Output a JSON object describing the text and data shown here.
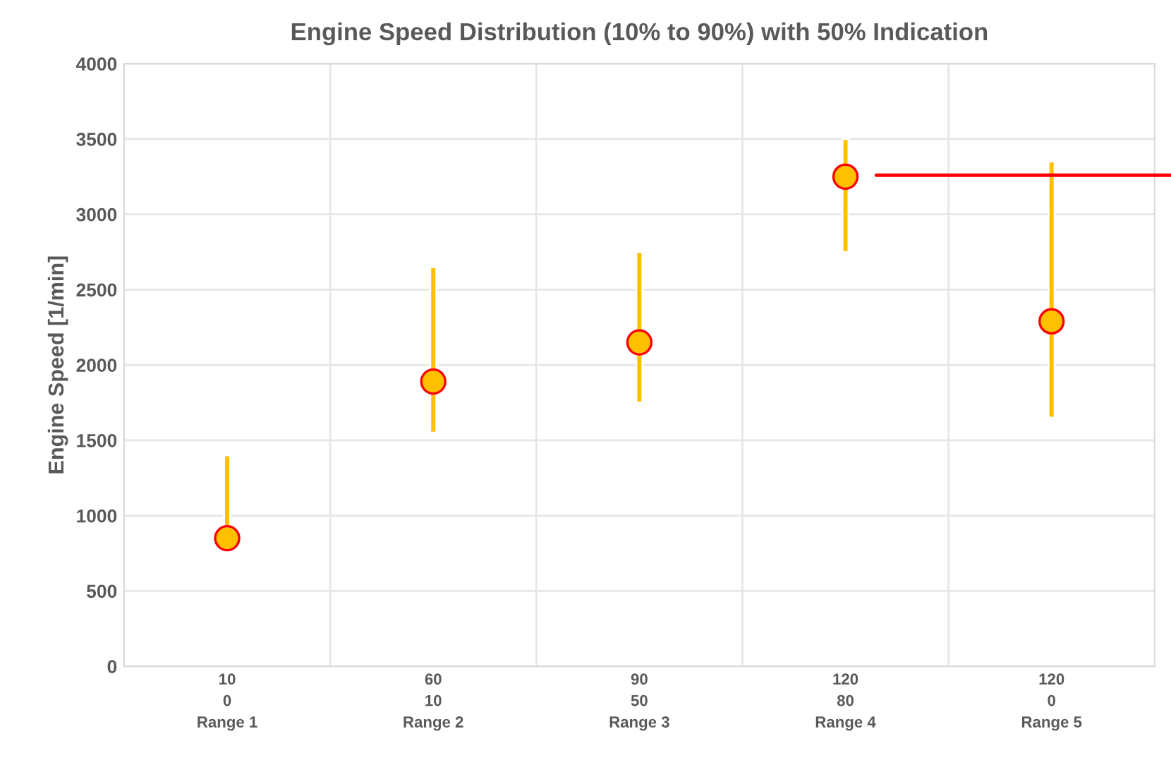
{
  "chart_data": {
    "type": "bar",
    "title": "Engine Speed Distribution (10% to 90%) with 50% Indication",
    "ylabel": "Engine Speed [1/min]",
    "categories": [
      "10\n0\nRange 1",
      "60\n10\nRange 2",
      "90\n50\nRange 3",
      "120\n80\nRange 4",
      "120\n0\nRange 5"
    ],
    "series": [
      {
        "color": "#ffc000",
        "base": [
          850,
          1550,
          1750,
          2750,
          1650
        ],
        "values": [
          550,
          1100,
          1000,
          750,
          1700
        ]
      },
      {
        "type": "scatter",
        "color": "#ffc000",
        "values": [
          850,
          1890,
          2150,
          3250,
          2290
        ]
      }
    ],
    "ylim": [
      0,
      4000
    ],
    "yticks": [
      0,
      500,
      1000,
      1500,
      2000,
      2500,
      3000,
      3500,
      4000
    ],
    "ref_lines": [
      {
        "axis": "y",
        "value": 3260,
        "color": "#ff0000"
      }
    ],
    "grid": true,
    "marker": "circle"
  }
}
